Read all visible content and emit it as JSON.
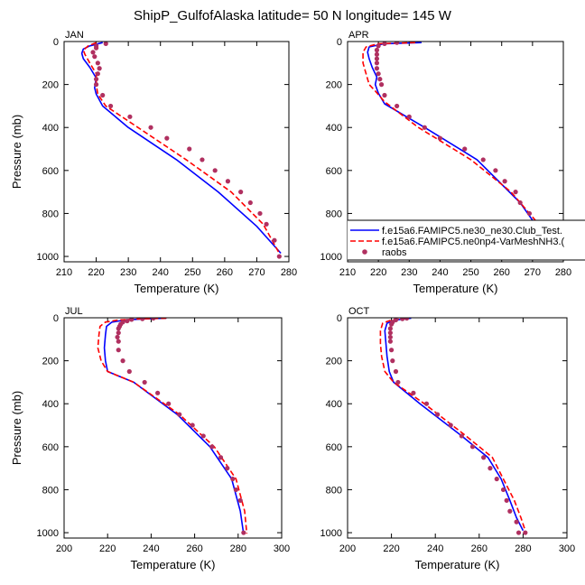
{
  "title": "ShipP_GulfofAlaska  latitude= 50 N longitude= 145 W",
  "legend": {
    "entries": [
      {
        "label": "f.e15a6.FAMIPC5.ne30_ne30.Club_Test.",
        "color": "#0000ff",
        "style": "solid"
      },
      {
        "label": "f.e15a6.FAMIPC5.ne0np4-VarMeshNH3.(",
        "color": "#ff0000",
        "style": "dashed"
      },
      {
        "label": "raobs",
        "color": "#b03060",
        "style": "marker"
      }
    ]
  },
  "chart_data": [
    {
      "type": "line",
      "panel": "JAN",
      "xlabel": "Temperature (K)",
      "ylabel": "Pressure (mb)",
      "xlim": [
        210,
        280
      ],
      "xticks": [
        210,
        220,
        230,
        240,
        250,
        260,
        270,
        280
      ],
      "ylim": [
        0,
        1025
      ],
      "yticks": [
        0,
        200,
        400,
        600,
        800,
        1000
      ],
      "y_reversed": true,
      "series": [
        {
          "name": "f.e15a6.FAMIPC5.ne30_ne30.Club_Test.",
          "color": "#0000ff",
          "style": "solid",
          "x": [
            222,
            218,
            216,
            215.5,
            216,
            218,
            220,
            219.5,
            220,
            222,
            230,
            245,
            258,
            270,
            277.5
          ],
          "y": [
            5,
            20,
            35,
            55,
            80,
            120,
            170,
            215,
            245,
            300,
            400,
            550,
            700,
            860,
            985
          ]
        },
        {
          "name": "f.e15a6.FAMIPC5.ne0np4-VarMeshNH3.(",
          "color": "#ff0000",
          "style": "dashed",
          "x": [
            220,
            217.5,
            216,
            216.5,
            218,
            220,
            220,
            220.5,
            223,
            233,
            248,
            262,
            272,
            277
          ],
          "y": [
            5,
            20,
            40,
            60,
            100,
            150,
            200,
            245,
            300,
            400,
            550,
            700,
            850,
            985
          ]
        },
        {
          "name": "raobs",
          "color": "#b03060",
          "style": "marker",
          "x": [
            223,
            220,
            220,
            219,
            219.5,
            220.5,
            221,
            220.5,
            220,
            220,
            222,
            224.5,
            230.5,
            237,
            242,
            249,
            253,
            257,
            261,
            265,
            268,
            271,
            273,
            275.5,
            277
          ],
          "y": [
            10,
            20,
            30,
            50,
            70,
            100,
            125,
            150,
            175,
            200,
            250,
            300,
            350,
            400,
            450,
            500,
            550,
            600,
            650,
            700,
            750,
            800,
            850,
            925,
            1000
          ]
        }
      ]
    },
    {
      "type": "line",
      "panel": "APR",
      "xlabel": "Temperature (K)",
      "ylabel": "",
      "xlim": [
        210,
        280
      ],
      "xticks": [
        210,
        220,
        230,
        240,
        250,
        260,
        270,
        280
      ],
      "ylim": [
        0,
        1025
      ],
      "yticks": [
        0,
        200,
        400,
        600,
        800,
        1000
      ],
      "y_reversed": true,
      "series": [
        {
          "name": "f.e15a6.FAMIPC5.ne30_ne30.Club_Test.",
          "color": "#0000ff",
          "style": "solid",
          "x": [
            234,
            222,
            217,
            216.5,
            217,
            218,
            219.5,
            219,
            220,
            222,
            235,
            252,
            266,
            278
          ],
          "y": [
            5,
            10,
            25,
            50,
            80,
            120,
            165,
            200,
            240,
            290,
            400,
            550,
            750,
            995
          ]
        },
        {
          "name": "f.e15a6.FAMIPC5.ne0np4-VarMeshNH3.(",
          "color": "#ff0000",
          "style": "dashed",
          "x": [
            232,
            220,
            216,
            215,
            215,
            216,
            217,
            219,
            222,
            233,
            250,
            263,
            272,
            278
          ],
          "y": [
            5,
            10,
            25,
            50,
            100,
            150,
            200,
            230,
            280,
            400,
            550,
            700,
            850,
            995
          ]
        },
        {
          "name": "raobs",
          "color": "#b03060",
          "style": "marker",
          "x": [
            226,
            222,
            220,
            219.5,
            219.5,
            219.5,
            219.5,
            219.5,
            220,
            220.5,
            221,
            222,
            226,
            230,
            235,
            240,
            248,
            254,
            258,
            261,
            264.5,
            266,
            269,
            271,
            273,
            278
          ],
          "y": [
            5,
            10,
            20,
            40,
            60,
            80,
            100,
            125,
            150,
            175,
            200,
            250,
            300,
            350,
            400,
            450,
            500,
            550,
            600,
            650,
            700,
            750,
            800,
            850,
            900,
            1000
          ]
        }
      ]
    },
    {
      "type": "line",
      "panel": "JUL",
      "xlabel": "Temperature (K)",
      "ylabel": "Pressure (mb)",
      "xlim": [
        200,
        300
      ],
      "xticks": [
        200,
        220,
        240,
        260,
        280,
        300
      ],
      "ylim": [
        0,
        1025
      ],
      "yticks": [
        0,
        200,
        400,
        600,
        800,
        1000
      ],
      "y_reversed": true,
      "series": [
        {
          "name": "f.e15a6.FAMIPC5.ne30_ne30.Club_Test.",
          "color": "#0000ff",
          "style": "solid",
          "x": [
            247,
            237,
            228,
            222,
            219.5,
            219,
            218.5,
            219,
            220,
            232,
            252,
            267,
            277,
            281,
            282.5
          ],
          "y": [
            2,
            5,
            10,
            20,
            40,
            80,
            140,
            200,
            250,
            300,
            450,
            600,
            750,
            900,
            1005
          ]
        },
        {
          "name": "f.e15a6.FAMIPC5.ne0np4-VarMeshNH3.(",
          "color": "#ff0000",
          "style": "dashed",
          "x": [
            247,
            235,
            225,
            219,
            216.5,
            216,
            215.5,
            217,
            220,
            232,
            253,
            269,
            279,
            283,
            284
          ],
          "y": [
            2,
            5,
            10,
            20,
            40,
            80,
            140,
            200,
            250,
            300,
            450,
            600,
            750,
            900,
            1005
          ]
        },
        {
          "name": "raobs",
          "color": "#b03060",
          "style": "marker",
          "x": [
            241,
            236,
            231,
            229,
            227,
            226,
            225.5,
            225,
            225,
            224.5,
            225,
            225,
            227,
            230,
            237,
            243,
            248,
            253,
            259,
            264,
            268,
            272,
            275,
            277.5,
            279,
            281,
            282.5
          ],
          "y": [
            2,
            5,
            8,
            15,
            20,
            30,
            40,
            50,
            70,
            90,
            110,
            150,
            200,
            250,
            300,
            350,
            400,
            450,
            500,
            550,
            600,
            650,
            700,
            750,
            800,
            850,
            1000
          ]
        }
      ]
    },
    {
      "type": "line",
      "panel": "OCT",
      "xlabel": "Temperature (K)",
      "ylabel": "",
      "xlim": [
        200,
        300
      ],
      "xticks": [
        200,
        220,
        240,
        260,
        280,
        300
      ],
      "ylim": [
        0,
        1025
      ],
      "yticks": [
        0,
        200,
        400,
        600,
        800,
        1000
      ],
      "y_reversed": true,
      "series": [
        {
          "name": "f.e15a6.FAMIPC5.ne30_ne30.Club_Test.",
          "color": "#0000ff",
          "style": "solid",
          "x": [
            229,
            222,
            218,
            217,
            217.5,
            218,
            219,
            221,
            233,
            252,
            264,
            270,
            274,
            277,
            280
          ],
          "y": [
            2,
            10,
            25,
            60,
            120,
            180,
            250,
            300,
            400,
            550,
            650,
            750,
            850,
            930,
            990
          ]
        },
        {
          "name": "f.e15a6.FAMIPC5.ne0np4-VarMeshNH3.(",
          "color": "#ff0000",
          "style": "dashed",
          "x": [
            227,
            220,
            216,
            215,
            215,
            215.5,
            217,
            221,
            235,
            254,
            266,
            271,
            276,
            279,
            281
          ],
          "y": [
            2,
            10,
            25,
            60,
            120,
            180,
            250,
            300,
            400,
            550,
            650,
            750,
            850,
            930,
            990
          ]
        },
        {
          "name": "raobs",
          "color": "#b03060",
          "style": "marker",
          "x": [
            227,
            225,
            222,
            220.5,
            220,
            219.5,
            219.5,
            219.5,
            219.5,
            220,
            220.5,
            222,
            223,
            230,
            236,
            241,
            247,
            252,
            257,
            262,
            265,
            268,
            271,
            272.5,
            274,
            277,
            278,
            281
          ],
          "y": [
            2,
            5,
            10,
            20,
            30,
            50,
            70,
            90,
            110,
            150,
            200,
            250,
            300,
            350,
            400,
            450,
            500,
            550,
            600,
            650,
            700,
            750,
            800,
            850,
            900,
            950,
            1000,
            1000
          ]
        }
      ]
    }
  ]
}
